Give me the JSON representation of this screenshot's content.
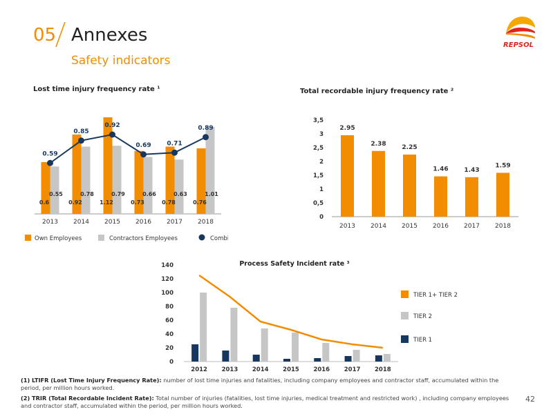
{
  "header": {
    "section_number": "05",
    "section_title": "Annexes",
    "subtitle": "Safety indicators",
    "logo_text": "REPSOL",
    "page_number": "42"
  },
  "colors": {
    "orange": "#f28c00",
    "grey": "#c6c6c6",
    "navy": "#17375e",
    "line_orange": "#f28c00"
  },
  "chart_data": [
    {
      "id": "ltifr",
      "type": "bar",
      "title": "Lost time injury frequency rate ¹",
      "categories": [
        "2013",
        "2014",
        "2015",
        "2016",
        "2017",
        "2018"
      ],
      "series": [
        {
          "name": "Own Employees",
          "kind": "bar",
          "values": [
            0.6,
            0.92,
            1.12,
            0.73,
            0.78,
            0.76
          ],
          "labels": [
            "0.6",
            "0.92",
            "1.12",
            "0.73",
            "0.78",
            "0.76"
          ]
        },
        {
          "name": "Contractors Employees",
          "kind": "bar",
          "values": [
            0.55,
            0.78,
            0.79,
            0.66,
            0.63,
            1.01
          ],
          "labels": [
            "0.55",
            "0.78",
            "0.79",
            "0.66",
            "0.63",
            "1.01"
          ]
        },
        {
          "name": "Combined",
          "kind": "line",
          "values": [
            0.59,
            0.85,
            0.92,
            0.69,
            0.71,
            0.89
          ],
          "labels": [
            "0.59",
            "0.85",
            "0.92",
            "0.69",
            "0.71",
            "0.89"
          ]
        }
      ],
      "ylim": [
        0,
        1.2
      ],
      "legend": "bottom"
    },
    {
      "id": "trir",
      "type": "bar",
      "title": "Total recordable injury frequency rate ²",
      "categories": [
        "2013",
        "2014",
        "2015",
        "2016",
        "2017",
        "2018"
      ],
      "values": [
        2.95,
        2.38,
        2.25,
        1.46,
        1.43,
        1.59
      ],
      "labels": [
        "2.95",
        "2.38",
        "2.25",
        "1.46",
        "1.43",
        "1.59"
      ],
      "yticks": [
        "0",
        "0,5",
        "1",
        "1,5",
        "2",
        "2,5",
        "3",
        "3,5"
      ],
      "ytick_values": [
        0,
        0.5,
        1,
        1.5,
        2,
        2.5,
        3,
        3.5
      ],
      "ylim": [
        0,
        3.5
      ]
    },
    {
      "id": "psir",
      "type": "bar",
      "title": "Process Safety Incident rate ³",
      "categories": [
        "2012",
        "2013",
        "2014",
        "2015",
        "2016",
        "2017",
        "2018"
      ],
      "series": [
        {
          "name": "TIER 1",
          "kind": "bar",
          "values": [
            25,
            16,
            10,
            4,
            5,
            8,
            9
          ]
        },
        {
          "name": "TIER 2",
          "kind": "bar",
          "values": [
            100,
            78,
            48,
            42,
            27,
            17,
            11
          ]
        },
        {
          "name": "TIER 1+ TIER 2",
          "kind": "line",
          "values": [
            125,
            94,
            58,
            46,
            32,
            25,
            20
          ]
        }
      ],
      "yticks": [
        "0",
        "20",
        "40",
        "60",
        "80",
        "100",
        "120",
        "140"
      ],
      "ytick_values": [
        0,
        20,
        40,
        60,
        80,
        100,
        120,
        140
      ],
      "ylim": [
        0,
        140
      ],
      "legend": "right"
    }
  ],
  "footnotes": {
    "f1_label": "(1) LTIFR (Lost Time Injury Frequency Rate):",
    "f1_text": " number of lost time injuries and fatalities,  including company employees and contractor staff, accumulated within the period, per million hours worked.",
    "f2_label": "(2) TRIR (Total Recordable Incident Rate):",
    "f2_text": " Total number of injuries (fatalities, lost time injuries, medical treatment and restricted work) , including company employees and contractor staff, accumulated within the period, per million hours worked."
  }
}
